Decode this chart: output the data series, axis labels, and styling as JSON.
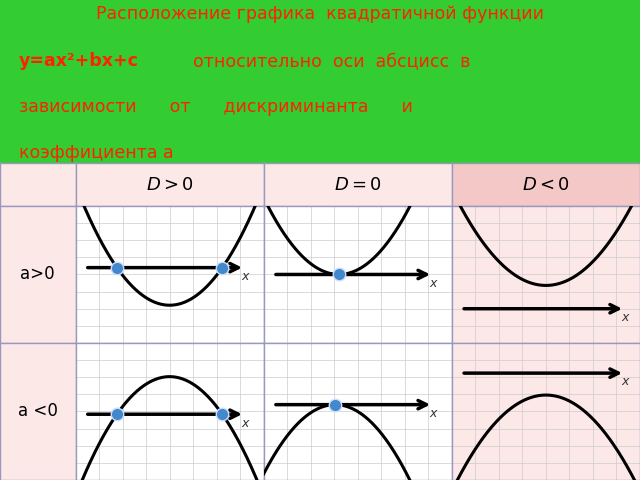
{
  "bg_color": "#33cc33",
  "title_line1": "Расположение графика  квадратичной функции",
  "title_line2_bold": "y=ax²+bx+c",
  "title_line2_rest": "  относительно  оси  абсцисс  в",
  "title_line3": "зависимости      от      дискриминанта      и",
  "title_line4": "коэффициента а",
  "title_color": "#ff2200",
  "cell_bg_pink": "#fde8e8",
  "cell_bg_white": "#ffffff",
  "grid_color": "#cccccc",
  "header_bg_white": "#fde8e8",
  "header_bg_pink": "#f5c8c8",
  "col_headers": [
    "D>0",
    "D=0",
    "D<0"
  ],
  "row_headers": [
    "a>0",
    "a <0"
  ],
  "table_border_color": "#9999bb",
  "curve_color": "#000000",
  "dot_color": "#4488cc",
  "arrow_color": "#000000"
}
